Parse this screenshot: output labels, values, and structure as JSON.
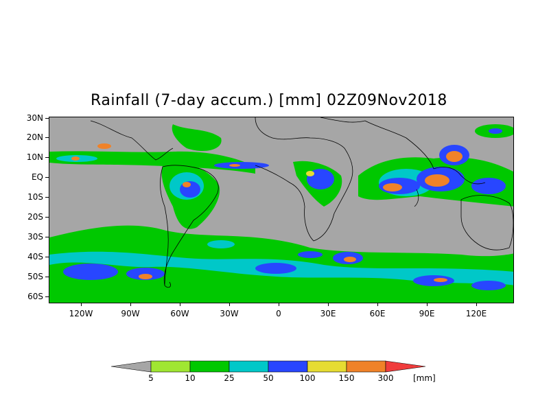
{
  "title": "Rainfall (7-day accum.) [mm] 02Z09Nov2018",
  "map": {
    "lat_ticks": [
      "30N",
      "20N",
      "10N",
      "EQ",
      "10S",
      "20S",
      "30S",
      "40S",
      "50S",
      "60S"
    ],
    "lon_ticks": [
      "120W",
      "90W",
      "60W",
      "30W",
      "0",
      "30E",
      "60E",
      "90E",
      "120E"
    ],
    "lat_range": [
      -63,
      30
    ],
    "lon_range": [
      -145,
      145
    ],
    "background_color": "#a6a6a6",
    "coastline_color": "#000000"
  },
  "legend": {
    "unit": "[mm]",
    "labels": [
      "5",
      "10",
      "25",
      "50",
      "100",
      "150",
      "300"
    ],
    "colors": {
      "below_5": "#a6a6a6",
      "5_10": "#a0e632",
      "10_25": "#00c800",
      "25_50": "#00c8c8",
      "50_100": "#2846ff",
      "100_150": "#e6dc32",
      "150_300": "#f08228",
      "above_300": "#f03c3c"
    }
  }
}
